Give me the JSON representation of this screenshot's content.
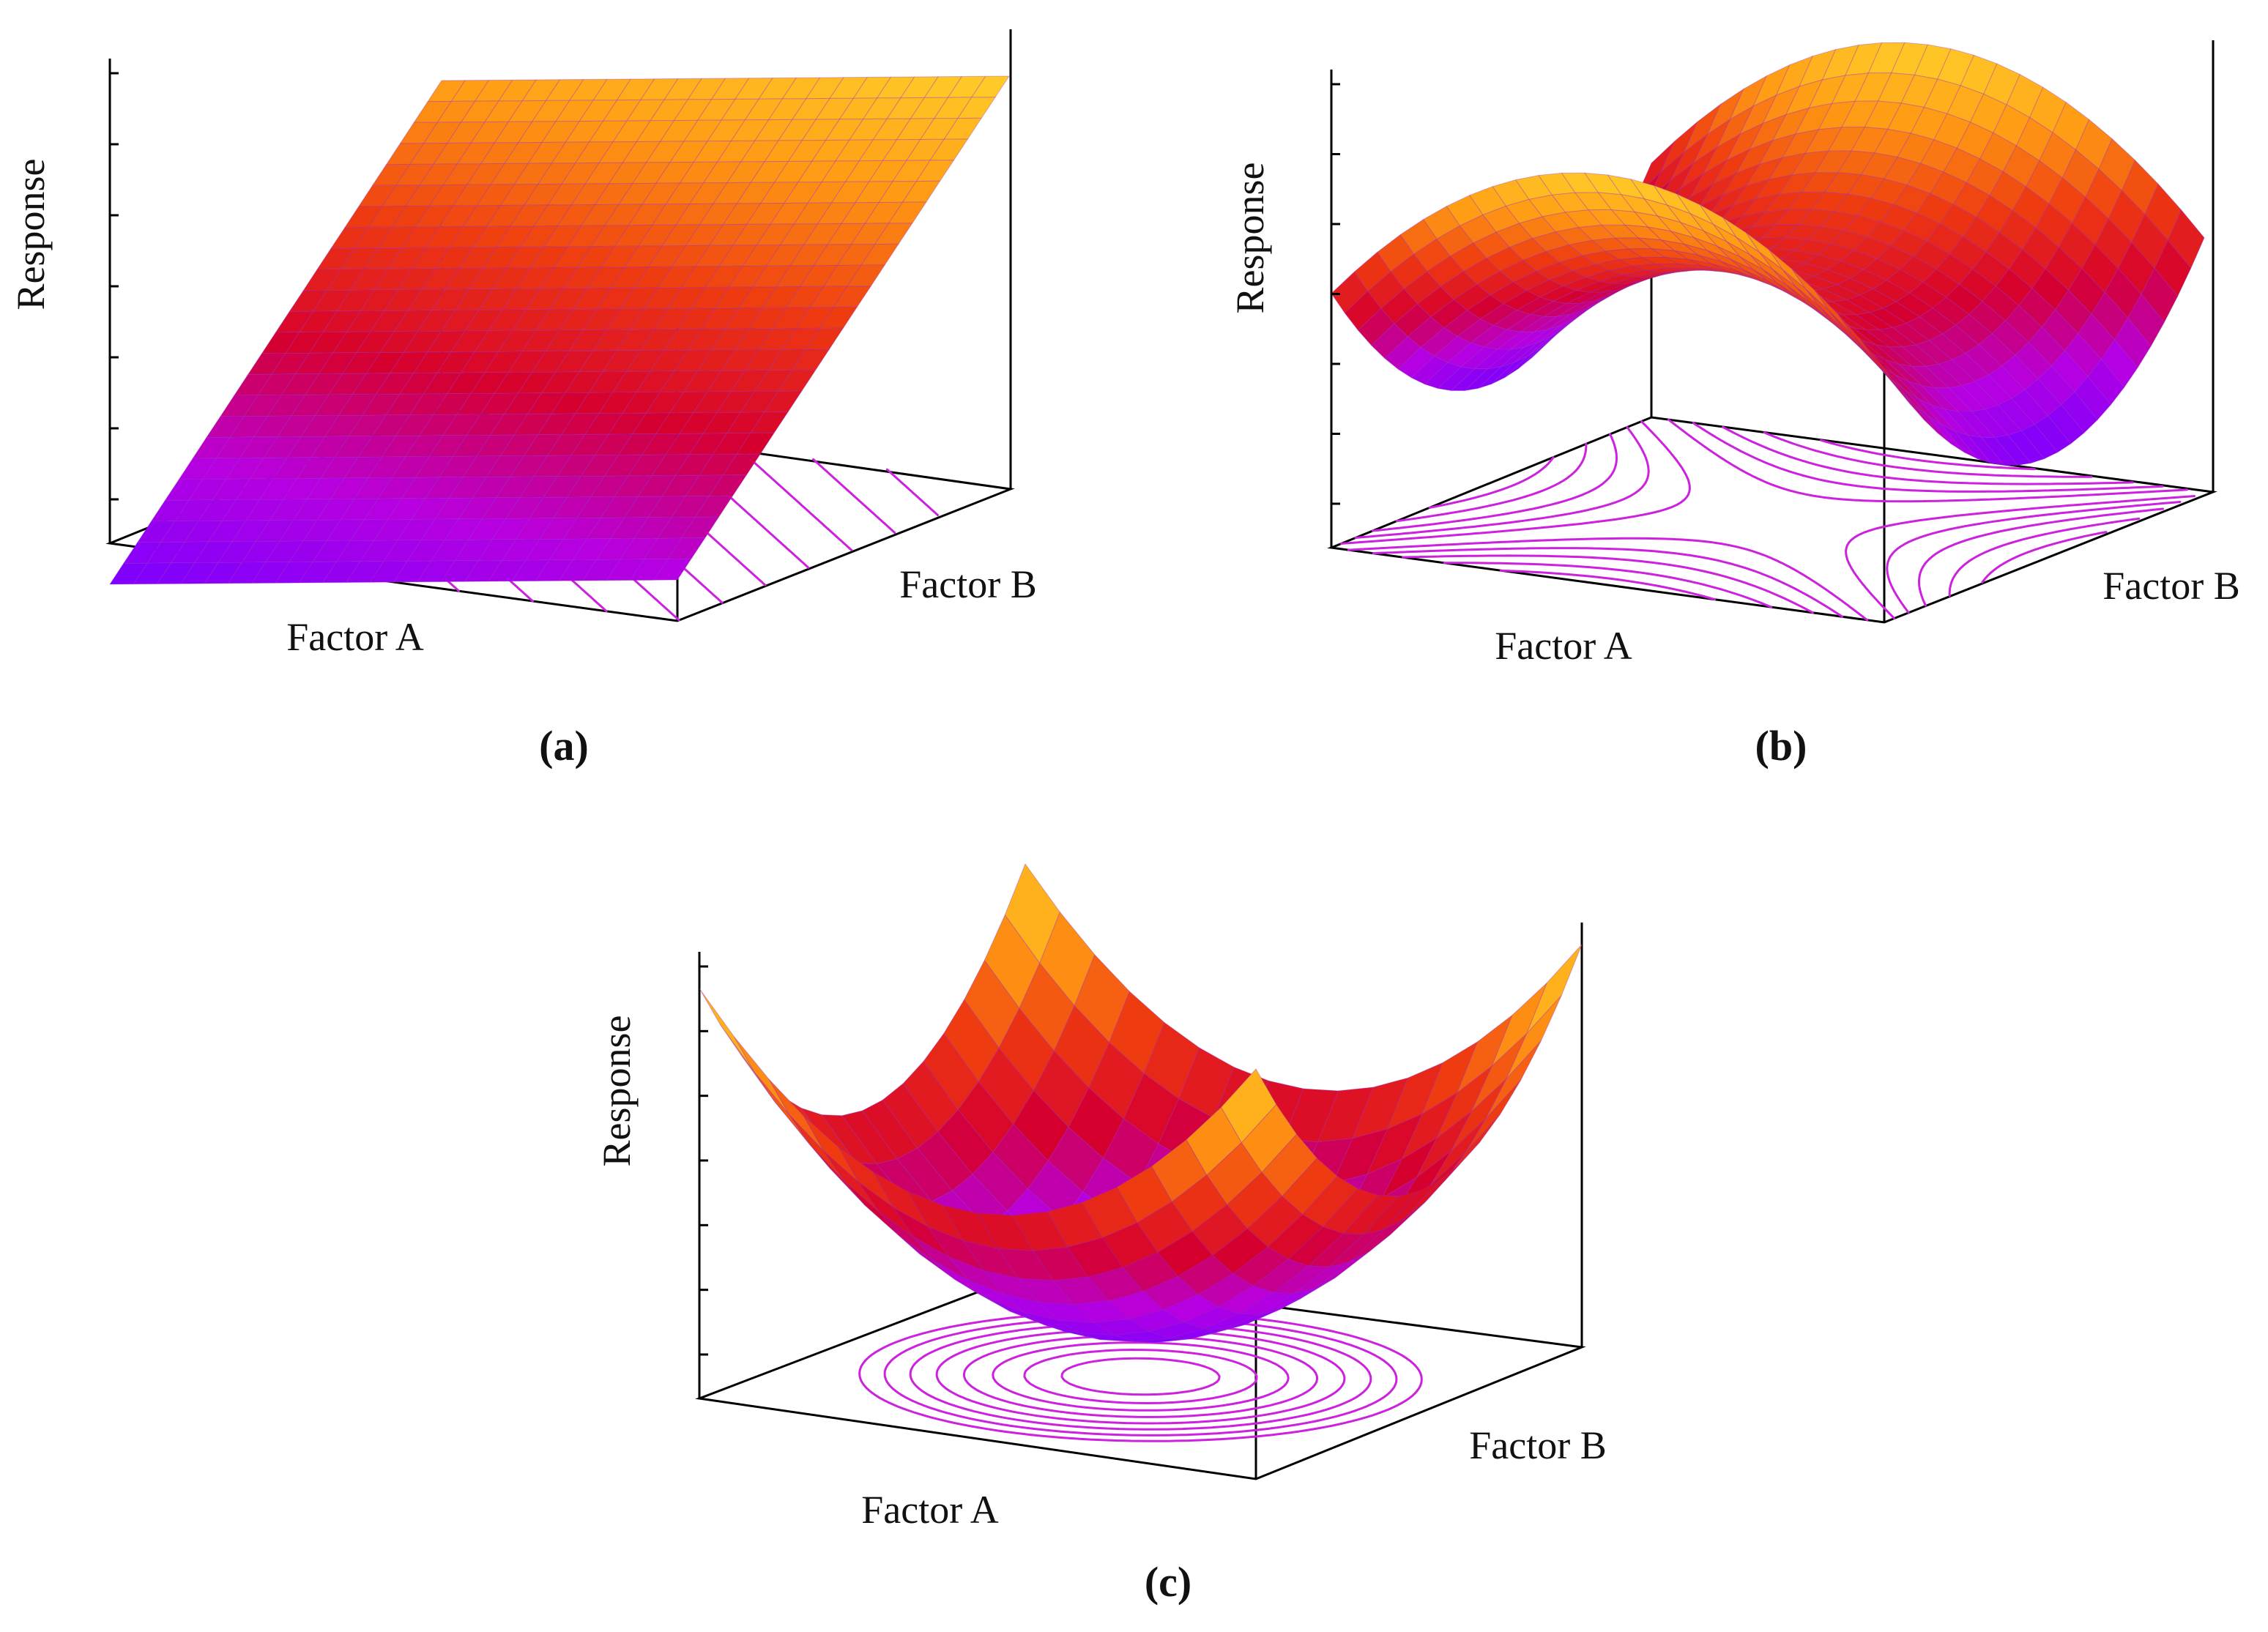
{
  "colors": {
    "contour": "#cc22dd",
    "frame": "#000000",
    "colormap": [
      "#7a00ff",
      "#b800e0",
      "#d6002e",
      "#ee3a10",
      "#ff9a14",
      "#ffd02a"
    ]
  },
  "chart_data": [
    {
      "panel": "(a)",
      "type": "surface",
      "surface_shape": "plane",
      "xlabel": "Factor A",
      "ylabel": "Factor B",
      "zlabel": "Response",
      "floor_contours": "parallel straight lines",
      "z_ticks": 7,
      "grid": true
    },
    {
      "panel": "(b)",
      "type": "surface",
      "surface_shape": "saddle",
      "xlabel": "Factor A",
      "ylabel": "Factor B",
      "zlabel": "Response",
      "floor_contours": "hyperbolic curves",
      "z_ticks": 7,
      "grid": true
    },
    {
      "panel": "(c)",
      "type": "surface",
      "surface_shape": "paraboloid (minimum)",
      "xlabel": "Factor A",
      "ylabel": "Factor B",
      "zlabel": "Response",
      "floor_contours": "concentric ellipses",
      "z_ticks": 7,
      "grid": true
    }
  ]
}
